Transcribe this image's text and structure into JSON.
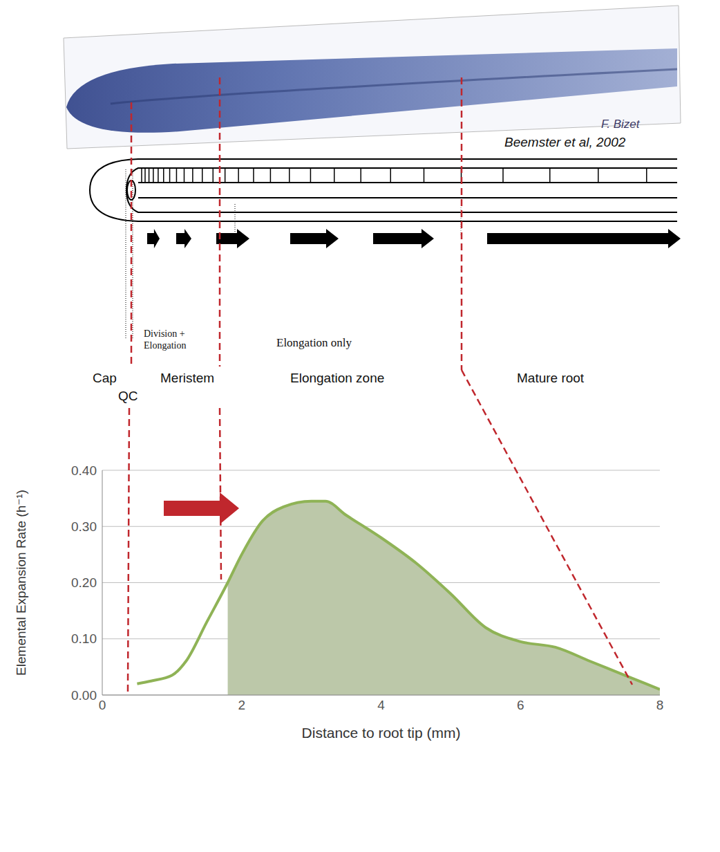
{
  "chart_data": {
    "type": "line",
    "x_label": "Distance to root tip (mm)",
    "y_label": "Elemental Expansion Rate  (h⁻¹)",
    "x": [
      0.5,
      0.7,
      1.0,
      1.2,
      1.5,
      1.8,
      2.0,
      2.3,
      2.6,
      3.0,
      3.2,
      3.5,
      4.0,
      4.5,
      5.0,
      5.5,
      6.0,
      6.5,
      7.0,
      7.5,
      8.0
    ],
    "series": [
      {
        "type": "area",
        "color": "#bcc8a9",
        "values": [
          null,
          null,
          null,
          null,
          null,
          0.2,
          0.25,
          0.31,
          0.335,
          0.345,
          0.345,
          0.32,
          0.28,
          0.235,
          0.18,
          0.12,
          0.095,
          0.085,
          0.06,
          0.035,
          0.01
        ]
      },
      {
        "type": "line",
        "color": "#8fb356",
        "values": [
          0.02,
          0.025,
          0.035,
          0.06,
          0.13,
          0.2,
          0.25,
          0.31,
          0.335,
          0.345,
          0.345,
          0.32,
          0.28,
          0.235,
          0.18,
          0.12,
          0.095,
          0.085,
          0.06,
          0.035,
          0.01
        ]
      }
    ],
    "xlim": [
      0,
      8
    ],
    "xticks": [
      0,
      2,
      4,
      6,
      8
    ],
    "ylim": [
      0,
      0.4
    ],
    "yticks": [
      {
        "value": 0,
        "label": "0.00"
      },
      {
        "value": 0.1,
        "label": "0.10"
      },
      {
        "value": 0.2,
        "label": "0.20"
      },
      {
        "value": 0.3,
        "label": "0.30"
      },
      {
        "value": 0.4,
        "label": "0.40"
      }
    ],
    "grid": true
  },
  "diagram": {
    "image_credit": "F. Bizet",
    "schematic_credit": "Beemster et al, 2002",
    "process_labels": [
      "Division + Elongation",
      "Elongation only"
    ],
    "zone_labels": [
      "Cap",
      "QC",
      "Meristem",
      "Elongation zone",
      "Mature root"
    ]
  }
}
